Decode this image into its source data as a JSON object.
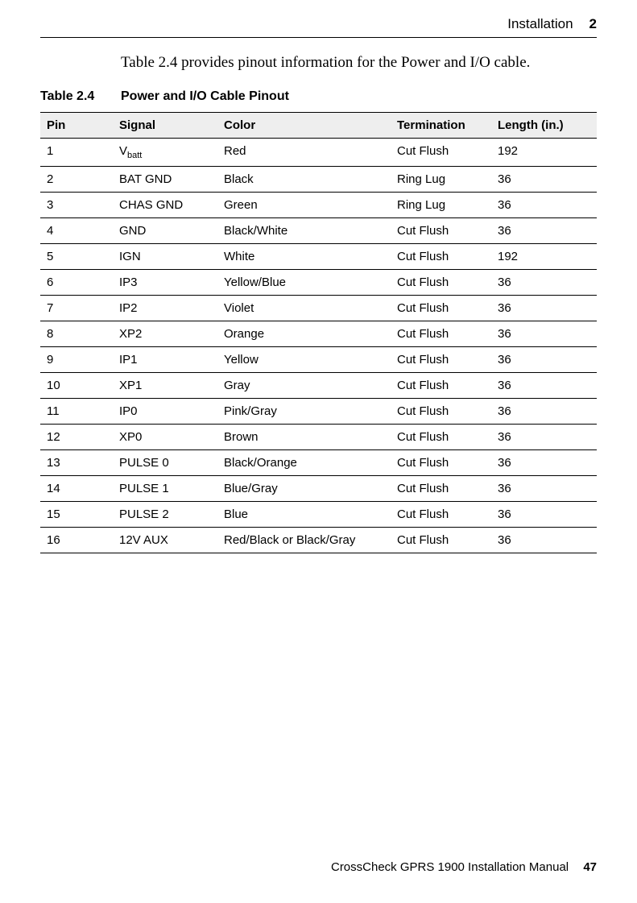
{
  "header": {
    "section": "Installation",
    "chapter_number": "2"
  },
  "intro": "Table 2.4 provides pinout information for the Power and I/O cable.",
  "table": {
    "label": "Table 2.4",
    "title": "Power and I/O Cable Pinout",
    "columns": {
      "pin": "Pin",
      "signal": "Signal",
      "color": "Color",
      "termination": "Termination",
      "length": "Length (in.)"
    },
    "rows": [
      {
        "pin": "1",
        "signal_pre": "V",
        "signal_sub": "batt",
        "color": "Red",
        "termination": "Cut Flush",
        "length": "192"
      },
      {
        "pin": "2",
        "signal": "BAT GND",
        "color": "Black",
        "termination": "Ring Lug",
        "length": "36"
      },
      {
        "pin": "3",
        "signal": "CHAS GND",
        "color": "Green",
        "termination": "Ring Lug",
        "length": "36"
      },
      {
        "pin": "4",
        "signal": "GND",
        "color": "Black/White",
        "termination": "Cut Flush",
        "length": "36"
      },
      {
        "pin": "5",
        "signal": "IGN",
        "color": "White",
        "termination": "Cut Flush",
        "length": "192"
      },
      {
        "pin": "6",
        "signal": "IP3",
        "color": "Yellow/Blue",
        "termination": "Cut Flush",
        "length": "36"
      },
      {
        "pin": "7",
        "signal": "IP2",
        "color": "Violet",
        "termination": "Cut Flush",
        "length": "36"
      },
      {
        "pin": "8",
        "signal": "XP2",
        "color": "Orange",
        "termination": "Cut Flush",
        "length": "36"
      },
      {
        "pin": "9",
        "signal": "IP1",
        "color": "Yellow",
        "termination": "Cut Flush",
        "length": "36"
      },
      {
        "pin": "10",
        "signal": "XP1",
        "color": "Gray",
        "termination": "Cut Flush",
        "length": "36"
      },
      {
        "pin": "11",
        "signal": "IP0",
        "color": "Pink/Gray",
        "termination": "Cut Flush",
        "length": "36"
      },
      {
        "pin": "12",
        "signal": "XP0",
        "color": "Brown",
        "termination": "Cut Flush",
        "length": "36"
      },
      {
        "pin": "13",
        "signal": "PULSE 0",
        "color": "Black/Orange",
        "termination": "Cut Flush",
        "length": "36"
      },
      {
        "pin": "14",
        "signal": "PULSE 1",
        "color": "Blue/Gray",
        "termination": "Cut Flush",
        "length": "36"
      },
      {
        "pin": "15",
        "signal": "PULSE 2",
        "color": "Blue",
        "termination": "Cut Flush",
        "length": "36"
      },
      {
        "pin": "16",
        "signal": "12V AUX",
        "color": "Red/Black or Black/Gray",
        "termination": "Cut Flush",
        "length": "36"
      }
    ]
  },
  "footer": {
    "manual_title": "CrossCheck GPRS 1900 Installation Manual",
    "page_number": "47"
  }
}
